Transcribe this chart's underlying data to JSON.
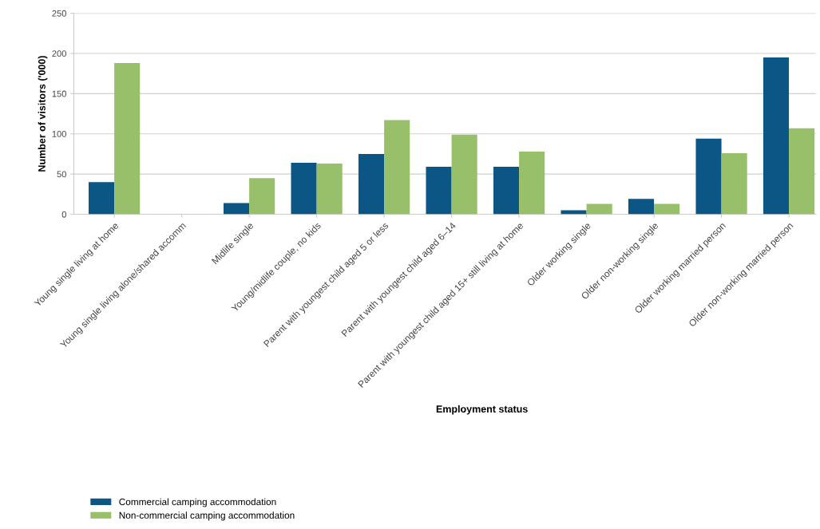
{
  "chart_data": {
    "type": "bar",
    "xlabel": "Employment status",
    "ylabel": "Number of visitors ('000)",
    "categories": [
      "Young single living at home",
      "Young single living alone/shared accomm",
      "Midlife single",
      "Young/midlife couple, no kids",
      "Parent with youngest child aged 5 or less",
      "Parent with youngest child aged 6–14",
      "Parent with youngest child aged 15+ still living at home",
      "Older working single",
      "Older non-working single",
      "Older working married person",
      "Older non-working married person"
    ],
    "series": [
      {
        "name": "Commercial camping accommodation",
        "color": "#0b5685",
        "values": [
          40,
          0,
          14,
          64,
          75,
          59,
          59,
          5,
          19,
          94,
          195
        ]
      },
      {
        "name": "Non-commercial camping accommodation",
        "color": "#98c06a",
        "values": [
          188,
          0,
          45,
          63,
          117,
          99,
          78,
          13,
          13,
          76,
          107
        ]
      }
    ],
    "ylim": [
      0,
      250
    ],
    "yticks": [
      0,
      50,
      100,
      150,
      200,
      250
    ],
    "grid": "y",
    "legend": "bottom left"
  }
}
